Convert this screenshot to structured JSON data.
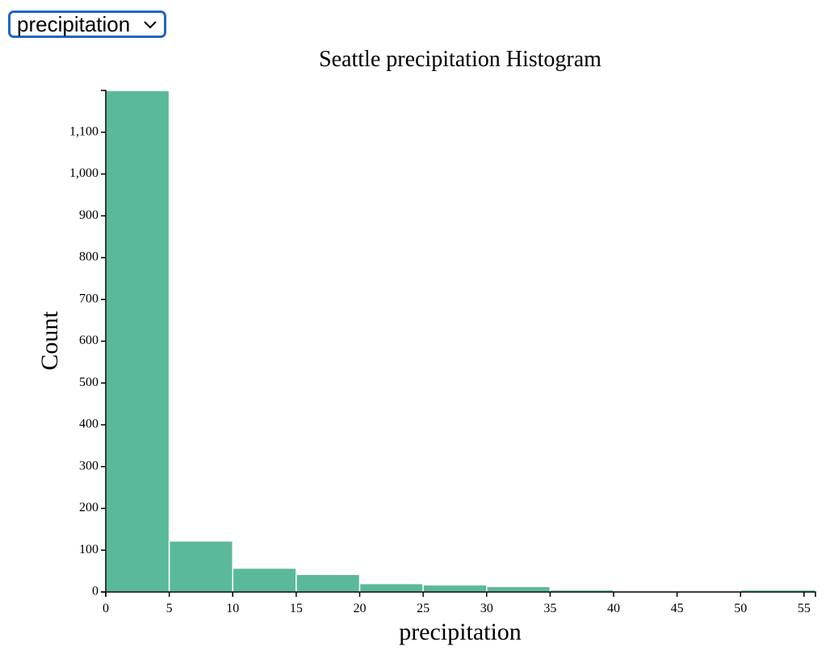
{
  "dropdown": {
    "selected": "precipitation",
    "icon": "chevron-down-icon"
  },
  "chart_data": {
    "type": "bar",
    "title": "Seattle precipitation Histogram",
    "xlabel": "precipitation",
    "ylabel": "Count",
    "bin_edges": [
      0,
      5,
      10,
      15,
      20,
      25,
      30,
      35,
      40,
      45,
      50,
      55.9
    ],
    "values": [
      1200,
      122,
      57,
      42,
      20,
      17,
      13,
      5,
      3,
      3,
      5
    ],
    "xlim": [
      0,
      55.9
    ],
    "ylim": [
      0,
      1200
    ],
    "x_ticks": [
      0,
      5,
      10,
      15,
      20,
      25,
      30,
      35,
      40,
      45,
      50,
      55
    ],
    "y_ticks": [
      0,
      100,
      200,
      300,
      400,
      500,
      600,
      700,
      800,
      900,
      1000,
      1100
    ],
    "y_tick_labels": [
      "0",
      "100",
      "200",
      "300",
      "400",
      "500",
      "600",
      "700",
      "800",
      "900",
      "1,000",
      "1,100"
    ],
    "bar_color": "#5bb99b",
    "grid": false
  }
}
